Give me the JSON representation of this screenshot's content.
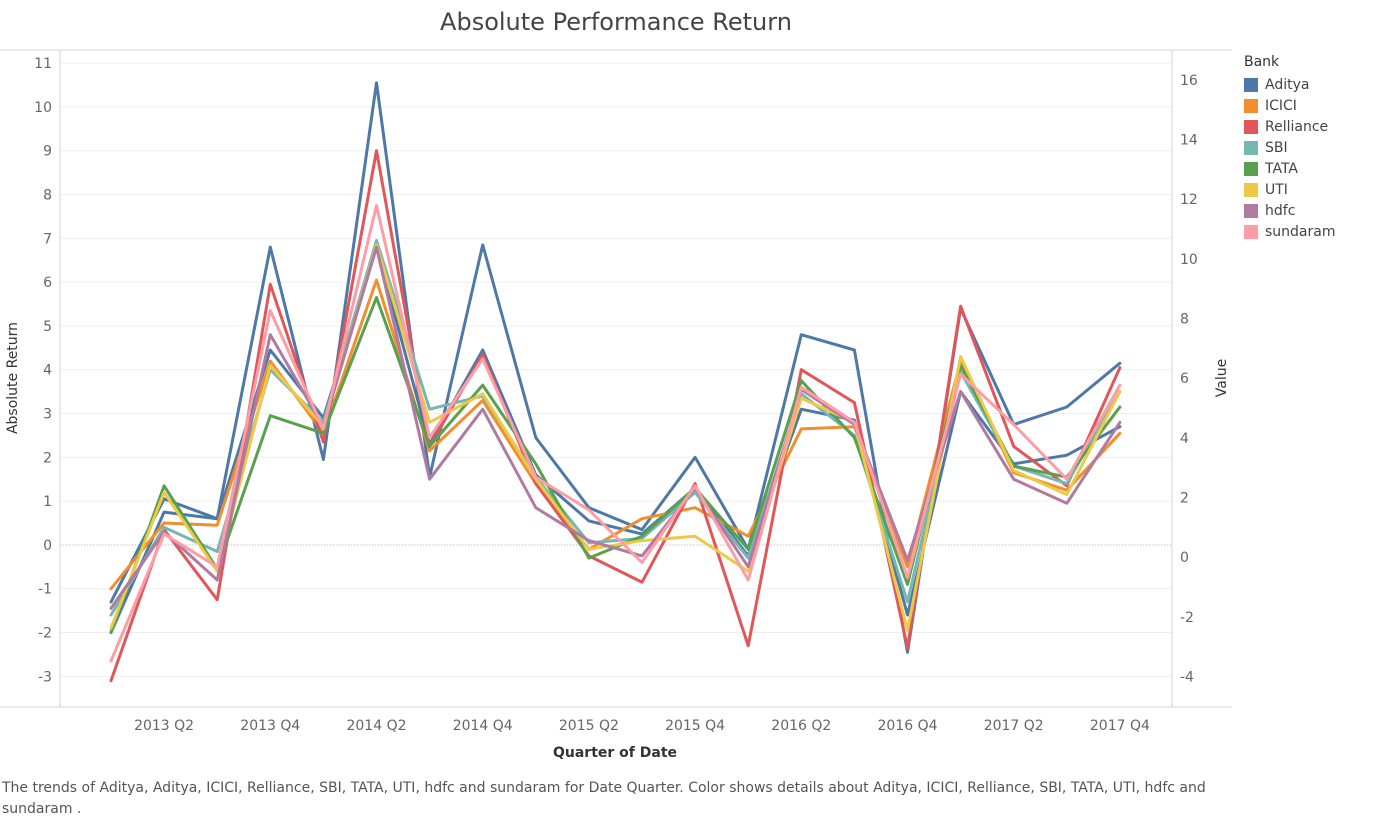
{
  "chart_data": {
    "type": "line",
    "title": "Absolute Performance Return",
    "xlabel": "Quarter of Date",
    "ylabel": "Absolute Return",
    "y2label": "Value",
    "ylim": [
      -3.7,
      11.3
    ],
    "y2lim": [
      -5.02,
      17.0
    ],
    "yticks": [
      -3,
      -2,
      -1,
      0,
      1,
      2,
      3,
      4,
      5,
      6,
      7,
      8,
      9,
      10,
      11
    ],
    "y2ticks": [
      -4,
      -2,
      0,
      2,
      4,
      6,
      8,
      10,
      12,
      14,
      16
    ],
    "xtick_labels": [
      "2013 Q2",
      "2013 Q4",
      "2014 Q2",
      "2014 Q4",
      "2015 Q2",
      "2015 Q4",
      "2016 Q2",
      "2016 Q4",
      "2017 Q2",
      "2017 Q4"
    ],
    "x": [
      "2013 Q1",
      "2013 Q2",
      "2013 Q3",
      "2013 Q4",
      "2014 Q1",
      "2014 Q2",
      "2014 Q3",
      "2014 Q4",
      "2015 Q1",
      "2015 Q2",
      "2015 Q3",
      "2015 Q4",
      "2016 Q1",
      "2016 Q2",
      "2016 Q3",
      "2016 Q4",
      "2017 Q1",
      "2017 Q2",
      "2017 Q3",
      "2017 Q4"
    ],
    "grid": true,
    "legend": {
      "title": "Bank",
      "placement": "right"
    },
    "series": [
      {
        "name": "Aditya",
        "color": "#4e79a7",
        "values": [
          -1.3,
          1.05,
          0.6,
          6.8,
          1.95,
          10.55,
          1.55,
          6.85,
          2.45,
          0.85,
          0.35,
          2.0,
          -0.1,
          4.8,
          4.45,
          -2.45,
          5.4,
          2.75,
          3.15,
          4.15
        ]
      },
      {
        "name": "Aditya",
        "color": "#4e79a7",
        "values": [
          -2.0,
          0.75,
          0.6,
          4.45,
          2.9,
          6.8,
          2.3,
          4.45,
          1.6,
          0.55,
          0.25,
          1.3,
          -0.25,
          3.1,
          2.85,
          -1.6,
          3.5,
          1.85,
          2.05,
          2.7
        ]
      },
      {
        "name": "ICICI",
        "color": "#f28e2b",
        "values": [
          -1.0,
          0.5,
          0.45,
          4.2,
          2.55,
          6.05,
          2.15,
          3.3,
          1.4,
          -0.1,
          0.6,
          0.85,
          0.2,
          2.65,
          2.7,
          -0.5,
          4.2,
          1.65,
          1.25,
          2.55
        ]
      },
      {
        "name": "Relliance",
        "color": "#e15759",
        "values": [
          -3.1,
          0.35,
          -1.25,
          5.95,
          2.35,
          9.0,
          2.25,
          4.35,
          1.4,
          -0.25,
          -0.85,
          1.4,
          -2.3,
          4.0,
          3.25,
          -2.35,
          5.45,
          2.25,
          1.35,
          4.05
        ]
      },
      {
        "name": "SBI",
        "color": "#76b7b2",
        "values": [
          -1.6,
          0.4,
          -0.15,
          4.0,
          2.8,
          6.95,
          3.1,
          3.4,
          1.55,
          0.05,
          0.15,
          1.2,
          -0.3,
          3.45,
          2.5,
          -1.3,
          3.95,
          1.8,
          1.4,
          3.5
        ]
      },
      {
        "name": "TATA",
        "color": "#59a14f",
        "values": [
          -2.0,
          1.35,
          -0.55,
          2.95,
          2.55,
          5.65,
          2.25,
          3.65,
          1.85,
          -0.3,
          0.2,
          1.3,
          -0.1,
          3.75,
          2.45,
          -0.9,
          4.1,
          1.8,
          1.55,
          3.15
        ]
      },
      {
        "name": "UTI",
        "color": "#edc948",
        "values": [
          -1.9,
          1.2,
          -0.6,
          4.1,
          2.7,
          6.85,
          2.8,
          3.45,
          1.5,
          -0.1,
          0.1,
          0.2,
          -0.6,
          3.35,
          2.8,
          -1.95,
          4.3,
          1.7,
          1.15,
          3.5
        ]
      },
      {
        "name": "hdfc",
        "color": "#b07aa1",
        "values": [
          -1.45,
          0.3,
          -0.8,
          4.8,
          2.7,
          6.8,
          1.5,
          3.1,
          0.85,
          0.1,
          -0.25,
          1.3,
          -0.5,
          3.55,
          2.75,
          -0.35,
          3.5,
          1.5,
          0.95,
          2.8
        ]
      },
      {
        "name": "sundaram",
        "color": "#ff9da7",
        "values": [
          -2.65,
          0.25,
          -0.5,
          5.35,
          2.65,
          7.75,
          2.45,
          4.25,
          1.55,
          0.8,
          -0.4,
          1.35,
          -0.8,
          3.6,
          2.8,
          -0.75,
          3.9,
          2.75,
          1.5,
          3.65
        ]
      }
    ]
  },
  "legend_items": [
    {
      "label": "Aditya",
      "color": "#4e79a7"
    },
    {
      "label": "ICICI",
      "color": "#f28e2b"
    },
    {
      "label": "Relliance",
      "color": "#e15759"
    },
    {
      "label": "SBI",
      "color": "#76b7b2"
    },
    {
      "label": "TATA",
      "color": "#59a14f"
    },
    {
      "label": "UTI",
      "color": "#edc948"
    },
    {
      "label": "hdfc",
      "color": "#b07aa1"
    },
    {
      "label": "sundaram",
      "color": "#ff9da7"
    }
  ],
  "caption": "The trends of Aditya, Aditya, ICICI, Relliance, SBI, TATA, UTI, hdfc and sundaram  for Date Quarter.  Color shows details about Aditya, ICICI, Relliance, SBI, TATA, UTI, hdfc and sundaram ."
}
